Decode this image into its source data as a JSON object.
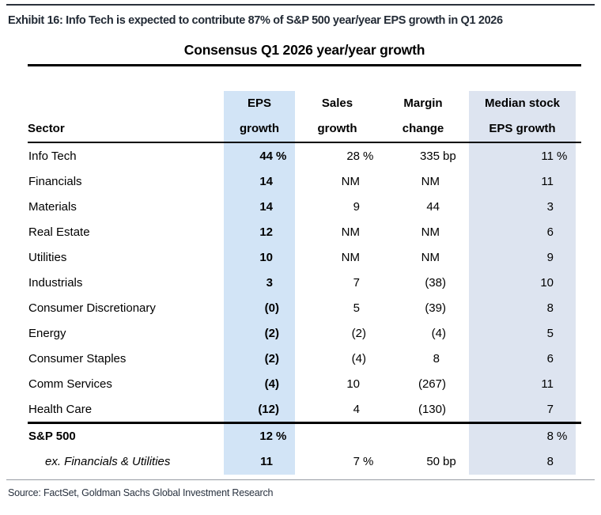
{
  "exhibit": {
    "title": "Exhibit 16: Info Tech is expected to contribute 87% of S&P 500 year/year EPS growth in Q1 2026"
  },
  "chart_data": {
    "type": "table",
    "title": "Consensus Q1 2026 year/year growth",
    "headers": {
      "sector": "Sector",
      "eps": [
        "EPS",
        "growth"
      ],
      "sales": [
        "Sales",
        "growth"
      ],
      "margin": [
        "Margin",
        "change"
      ],
      "median": [
        "Median stock",
        "EPS growth"
      ]
    },
    "rows": [
      {
        "label": "Info Tech",
        "eps": "44 %",
        "sales": "28 %",
        "margin": "335 bp",
        "median": "11 %"
      },
      {
        "label": "Financials",
        "eps": "14",
        "sales": "NM",
        "margin": "NM",
        "median": "11"
      },
      {
        "label": "Materials",
        "eps": "14",
        "sales": "9",
        "margin": "44",
        "median": "3"
      },
      {
        "label": "Real Estate",
        "eps": "12",
        "sales": "NM",
        "margin": "NM",
        "median": "6"
      },
      {
        "label": "Utilities",
        "eps": "10",
        "sales": "NM",
        "margin": "NM",
        "median": "9"
      },
      {
        "label": "Industrials",
        "eps": "3",
        "sales": "7",
        "margin": "(38)",
        "median": "10"
      },
      {
        "label": "Consumer Discretionary",
        "eps": "(0)",
        "sales": "5",
        "margin": "(39)",
        "median": "8"
      },
      {
        "label": "Energy",
        "eps": "(2)",
        "sales": "(2)",
        "margin": "(4)",
        "median": "5"
      },
      {
        "label": "Consumer Staples",
        "eps": "(2)",
        "sales": "(4)",
        "margin": "8",
        "median": "6"
      },
      {
        "label": "Comm Services",
        "eps": "(4)",
        "sales": "10",
        "margin": "(267)",
        "median": "11"
      },
      {
        "label": "Health Care",
        "eps": "(12)",
        "sales": "4",
        "margin": "(130)",
        "median": "7"
      }
    ],
    "summary_rows": [
      {
        "label": "S&P 500",
        "eps": "12 %",
        "sales": "",
        "margin": "",
        "median": "8 %"
      },
      {
        "label": "ex. Financials & Utilities",
        "eps": "11",
        "sales": "7 %",
        "margin": "50 bp",
        "median": "8"
      }
    ]
  },
  "source": "Source: FactSet, Goldman Sachs Global Investment Research",
  "colors": {
    "eps_column_bg": "#d2e4f6",
    "median_column_bg": "#dde4f0",
    "rule_color": "#000000",
    "heading_text": "#232b36"
  }
}
